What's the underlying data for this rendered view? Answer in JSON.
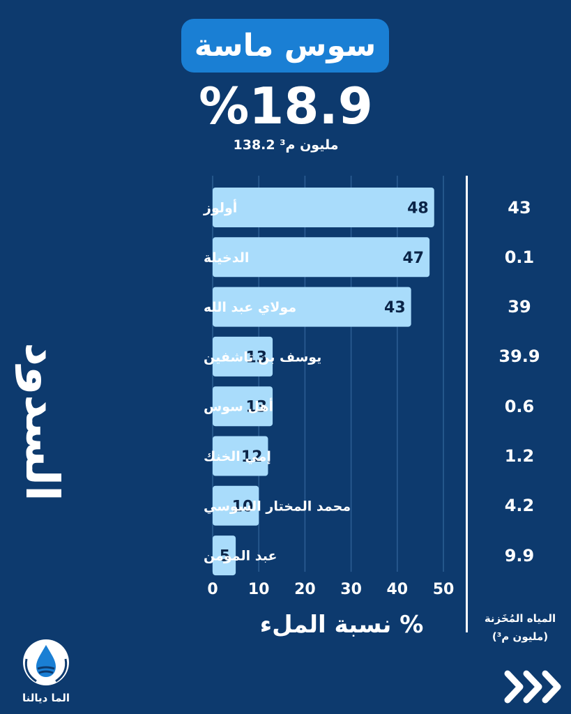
{
  "header": {
    "basin_name": "سوس ماسة",
    "fill_percent": "%18.9",
    "stored_volume": "138.2 مليون م³"
  },
  "chart_data": {
    "type": "bar",
    "orientation": "horizontal",
    "categories": [
      "أولوز",
      "الدخيلة",
      "مولاي عبد الله",
      "يوسف بن تاشفين",
      "أهل سوس",
      "إمي الخنك",
      "محمد المختار السوسي",
      "عبد المومن"
    ],
    "values": [
      48,
      47,
      43,
      13,
      13,
      12,
      10,
      5
    ],
    "xlim": [
      0,
      50
    ],
    "xticks": [
      0,
      10,
      20,
      30,
      40,
      50
    ],
    "xlabel": "نسبة الملء %",
    "ylabel": "السدود",
    "grid": true,
    "bar_color": "#a9dcfb",
    "label_color": "#0b2447"
  },
  "stored_water": {
    "title_line1": "المياه المُخَزنة",
    "title_line2": "(مليون م³)",
    "values": [
      "43",
      "0.1",
      "39",
      "39.9",
      "0.6",
      "1.2",
      "4.2",
      "9.9"
    ]
  },
  "brand": {
    "logo_text": "الما ديالنا",
    "logo_icon": "water-drop-hands-icon",
    "next_icon": "triple-chevron-right-icon"
  },
  "colors": {
    "background": "#0d3a6e",
    "title_pill": "#1a7fd4",
    "bar": "#a9dcfb"
  }
}
